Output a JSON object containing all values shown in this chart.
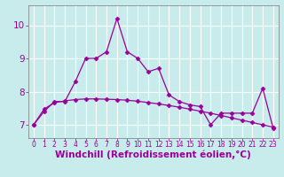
{
  "xlabel": "Windchill (Refroidissement éolien,°C)",
  "background_color": "#c8ecec",
  "grid_color": "#b0d8d8",
  "line_color": "#990099",
  "x": [
    0,
    1,
    2,
    3,
    4,
    5,
    6,
    7,
    8,
    9,
    10,
    11,
    12,
    13,
    14,
    15,
    16,
    17,
    18,
    19,
    20,
    21,
    22,
    23
  ],
  "y_curve": [
    7.0,
    7.4,
    7.7,
    7.7,
    8.3,
    9.0,
    9.0,
    9.2,
    10.2,
    9.2,
    9.0,
    8.6,
    8.7,
    7.9,
    7.7,
    7.6,
    7.55,
    7.0,
    7.35,
    7.35,
    7.35,
    7.35,
    8.1,
    6.9
  ],
  "y_linear": [
    7.0,
    7.47,
    7.67,
    7.72,
    7.76,
    7.78,
    7.78,
    7.77,
    7.76,
    7.74,
    7.71,
    7.67,
    7.63,
    7.58,
    7.53,
    7.47,
    7.41,
    7.35,
    7.28,
    7.21,
    7.14,
    7.07,
    7.0,
    6.93
  ],
  "ylim": [
    6.6,
    10.6
  ],
  "xlim": [
    -0.5,
    23.5
  ],
  "yticks": [
    7,
    8,
    9,
    10
  ],
  "xticks": [
    0,
    1,
    2,
    3,
    4,
    5,
    6,
    7,
    8,
    9,
    10,
    11,
    12,
    13,
    14,
    15,
    16,
    17,
    18,
    19,
    20,
    21,
    22,
    23
  ],
  "tick_label_color": "#990099",
  "xlabel_color": "#990099",
  "xlabel_fontsize": 7.5,
  "ytick_fontsize": 7.5,
  "xtick_fontsize": 5.5,
  "marker_size": 2.5,
  "linewidth": 0.9
}
